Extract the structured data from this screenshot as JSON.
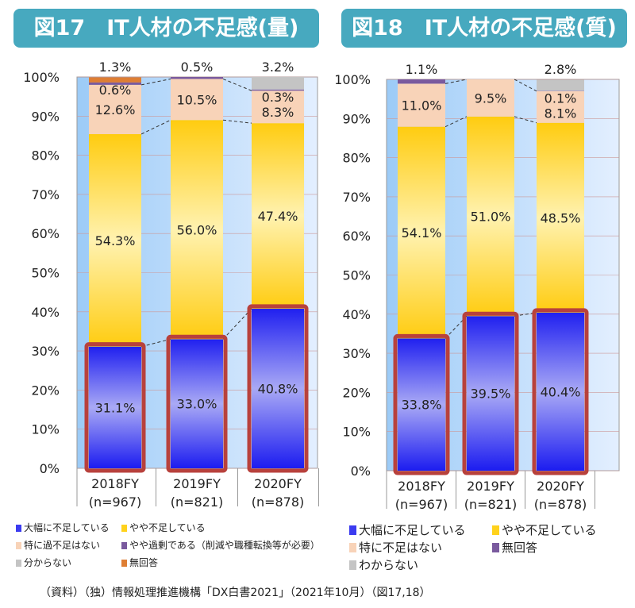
{
  "charts": [
    {
      "title": "図17　IT人材の不足感(量)"
    },
    {
      "title": "図18　IT人材の不足感(質)"
    }
  ],
  "footer": "（資料）（独）情報処理推進機構「DX白書2021」（2021年10月）（図17,18）",
  "chart_data": [
    {
      "type": "bar",
      "stacked": true,
      "title": "図17　IT人材の不足感(量)",
      "ylim": [
        0,
        100
      ],
      "yticks": [
        "0%",
        "10%",
        "20%",
        "30%",
        "40%",
        "50%",
        "60%",
        "70%",
        "80%",
        "90%",
        "100%"
      ],
      "categories": [
        "2018FY",
        "2019FY",
        "2020FY"
      ],
      "n": [
        "(n=967)",
        "(n=821)",
        "(n=878)"
      ],
      "series": [
        {
          "name": "大幅に不足している",
          "color": "#3b3bf0",
          "values": [
            31.1,
            33.0,
            40.8
          ]
        },
        {
          "name": "やや不足している",
          "color": "#ffd21c",
          "values": [
            54.3,
            56.0,
            47.4
          ]
        },
        {
          "name": "特に過不足はない",
          "color": "#f8d3b8",
          "values": [
            12.6,
            10.5,
            8.3
          ]
        },
        {
          "name": "やや過剰である（削減や職種転換等が必要）",
          "color": "#7a5a9e",
          "values": [
            0.6,
            0.5,
            0.3
          ]
        },
        {
          "name": "分からない",
          "color": "#c4c4c4",
          "values": [
            0,
            0,
            3.2
          ]
        },
        {
          "name": "無回答",
          "color": "#de7e34",
          "values": [
            1.3,
            0,
            0
          ]
        }
      ]
    },
    {
      "type": "bar",
      "stacked": true,
      "title": "図18　IT人材の不足感(質)",
      "ylim": [
        0,
        100
      ],
      "yticks": [
        "0%",
        "10%",
        "20%",
        "30%",
        "40%",
        "50%",
        "60%",
        "70%",
        "80%",
        "90%",
        "100%"
      ],
      "categories": [
        "2018FY",
        "2019FY",
        "2020FY"
      ],
      "n": [
        "(n=967)",
        "(n=821)",
        "(n=878)"
      ],
      "series": [
        {
          "name": "大幅に不足している",
          "color": "#3b3bf0",
          "values": [
            33.8,
            39.5,
            40.4
          ]
        },
        {
          "name": "やや不足している",
          "color": "#ffd21c",
          "values": [
            54.1,
            51.0,
            48.5
          ]
        },
        {
          "name": "特に不足はない",
          "color": "#f8d3b8",
          "values": [
            11.0,
            9.5,
            8.1
          ]
        },
        {
          "name": "無回答",
          "color": "#7a5a9e",
          "values": [
            1.1,
            0,
            0.1
          ]
        },
        {
          "name": "わからない",
          "color": "#c4c4c4",
          "values": [
            0,
            0,
            2.8
          ]
        }
      ]
    }
  ]
}
